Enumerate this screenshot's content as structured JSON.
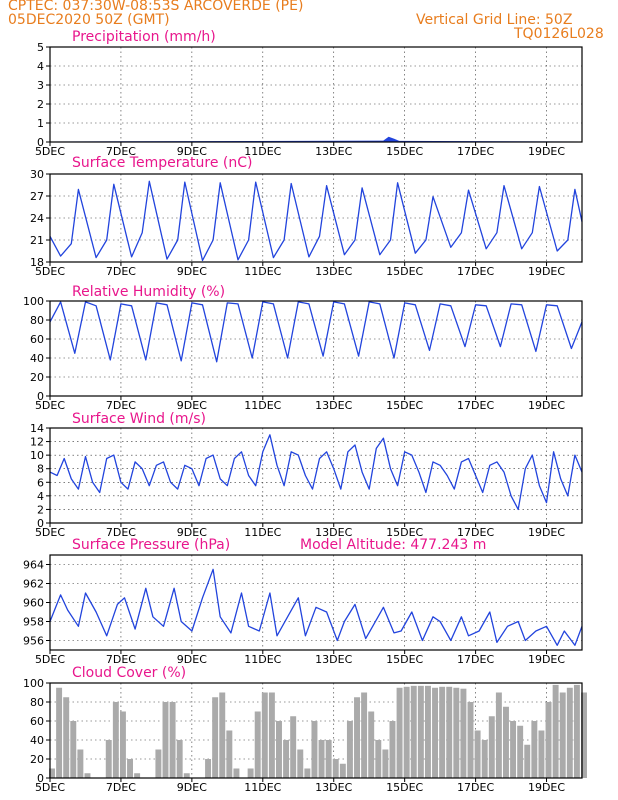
{
  "header": {
    "line1": "CPTEC:   037:30W-08:53S   ARCOVERDE (PE)",
    "line2": "05DEC2020 50Z (GMT)",
    "grid_note": "Vertical Grid Line: 50Z",
    "code": "TQ0126L028"
  },
  "colors": {
    "header": "#e87d1e",
    "title": "#e8168c",
    "series": "#2244dd",
    "cloud": "#aaaaaa",
    "axis": "#000000"
  },
  "x_axis": {
    "start_day": 5,
    "end_day": 20,
    "tick_labels": [
      "5DEC",
      "7DEC",
      "9DEC",
      "11DEC",
      "13DEC",
      "15DEC",
      "17DEC",
      "19DEC"
    ],
    "tick_days": [
      5,
      7,
      9,
      11,
      13,
      15,
      17,
      19
    ]
  },
  "chart_data": [
    {
      "id": "precip",
      "type": "area",
      "title": "Precipitation (mm/h)",
      "ylim": [
        0,
        5
      ],
      "yticks": [
        0,
        1,
        2,
        3,
        4,
        5
      ],
      "x": [
        5,
        14.4,
        14.55,
        14.7,
        14.85,
        20
      ],
      "y": [
        0,
        0.05,
        0.25,
        0.15,
        0.03,
        0
      ]
    },
    {
      "id": "temp",
      "type": "line",
      "title": "Surface Temperature (nC)",
      "ylim": [
        18,
        30
      ],
      "yticks": [
        18,
        21,
        24,
        27,
        30
      ],
      "x": [
        5.0,
        5.3,
        5.6,
        5.8,
        6.3,
        6.6,
        6.8,
        7.3,
        7.6,
        7.8,
        8.3,
        8.6,
        8.8,
        9.3,
        9.6,
        9.8,
        10.3,
        10.6,
        10.8,
        11.3,
        11.6,
        11.8,
        12.3,
        12.6,
        12.8,
        13.3,
        13.6,
        13.8,
        14.3,
        14.6,
        14.8,
        15.3,
        15.6,
        15.8,
        16.3,
        16.6,
        16.8,
        17.3,
        17.6,
        17.8,
        18.3,
        18.6,
        18.8,
        19.3,
        19.6,
        19.8,
        20.0
      ],
      "y": [
        21.5,
        18.8,
        20.5,
        27.9,
        18.6,
        21,
        28.6,
        18.7,
        22,
        29.0,
        18.4,
        21,
        28.9,
        18.2,
        21,
        28.8,
        18.3,
        21,
        28.9,
        18.6,
        21,
        28.7,
        18.7,
        21.5,
        28.4,
        19.0,
        21,
        28.1,
        19.0,
        21,
        28.8,
        19.2,
        21,
        26.9,
        20.0,
        22,
        27.8,
        19.8,
        22,
        28.4,
        19.8,
        22,
        28.3,
        19.5,
        21,
        27.9,
        23.5
      ]
    },
    {
      "id": "rh",
      "type": "line",
      "title": "Relative Humidity (%)",
      "ylim": [
        0,
        100
      ],
      "yticks": [
        0,
        20,
        40,
        60,
        80,
        100
      ],
      "x": [
        5.0,
        5.3,
        5.7,
        6.0,
        6.3,
        6.7,
        7.0,
        7.3,
        7.7,
        8.0,
        8.3,
        8.7,
        9.0,
        9.3,
        9.7,
        10.0,
        10.3,
        10.7,
        11.0,
        11.3,
        11.7,
        12.0,
        12.3,
        12.7,
        13.0,
        13.3,
        13.7,
        14.0,
        14.3,
        14.7,
        15.0,
        15.3,
        15.7,
        16.0,
        16.3,
        16.7,
        17.0,
        17.3,
        17.7,
        18.0,
        18.3,
        18.7,
        19.0,
        19.3,
        19.7,
        20.0
      ],
      "y": [
        78,
        99,
        45,
        99,
        95,
        38,
        97,
        95,
        38,
        98,
        96,
        37,
        98,
        96,
        36,
        98,
        97,
        40,
        99,
        97,
        40,
        99,
        97,
        42,
        99,
        97,
        42,
        99,
        97,
        40,
        98,
        96,
        48,
        97,
        95,
        52,
        96,
        95,
        52,
        97,
        96,
        47,
        96,
        95,
        50,
        78
      ]
    },
    {
      "id": "wind",
      "type": "line",
      "title": "Surface Wind (m/s)",
      "ylim": [
        0,
        14
      ],
      "yticks": [
        0,
        2,
        4,
        6,
        8,
        10,
        12,
        14
      ],
      "x": [
        5.0,
        5.2,
        5.4,
        5.6,
        5.8,
        6.0,
        6.2,
        6.4,
        6.6,
        6.8,
        7.0,
        7.2,
        7.4,
        7.6,
        7.8,
        8.0,
        8.2,
        8.4,
        8.6,
        8.8,
        9.0,
        9.2,
        9.4,
        9.6,
        9.8,
        10.0,
        10.2,
        10.4,
        10.6,
        10.8,
        11.0,
        11.2,
        11.4,
        11.6,
        11.8,
        12.0,
        12.2,
        12.4,
        12.6,
        12.8,
        13.0,
        13.2,
        13.4,
        13.6,
        13.8,
        14.0,
        14.2,
        14.4,
        14.6,
        14.8,
        15.0,
        15.2,
        15.4,
        15.6,
        15.8,
        16.0,
        16.2,
        16.4,
        16.6,
        16.8,
        17.0,
        17.2,
        17.4,
        17.6,
        17.8,
        18.0,
        18.2,
        18.4,
        18.6,
        18.8,
        19.0,
        19.2,
        19.4,
        19.6,
        19.8,
        20.0
      ],
      "y": [
        7.5,
        7.0,
        9.5,
        6.5,
        5.0,
        9.8,
        6.0,
        4.5,
        9.5,
        10.0,
        6.0,
        5.0,
        9.0,
        8.0,
        5.5,
        8.5,
        9.0,
        6.0,
        5.0,
        8.5,
        8.0,
        5.5,
        9.5,
        10.0,
        6.5,
        5.5,
        9.5,
        10.5,
        7.0,
        5.5,
        10.5,
        13.0,
        8.5,
        5.5,
        10.5,
        10.0,
        7.0,
        5.0,
        9.5,
        10.5,
        8.0,
        5.0,
        10.5,
        11.5,
        7.5,
        5.0,
        11.0,
        12.5,
        8.0,
        5.5,
        10.5,
        10.0,
        7.5,
        4.5,
        9.0,
        8.5,
        7.0,
        5.0,
        9.0,
        9.5,
        7.0,
        4.5,
        8.5,
        9.0,
        7.5,
        4.0,
        2.0,
        8.0,
        10.0,
        5.5,
        3.0,
        10.5,
        6.5,
        4.0,
        10.0,
        7.5
      ]
    },
    {
      "id": "pres",
      "type": "line",
      "title": "Surface Pressure (hPa)",
      "subtitle": "Model Altitude: 477.243 m",
      "ylim": [
        955,
        965
      ],
      "yticks": [
        956,
        958,
        960,
        962,
        964
      ],
      "x": [
        5.0,
        5.3,
        5.5,
        5.8,
        6.0,
        6.3,
        6.6,
        6.9,
        7.1,
        7.4,
        7.7,
        7.9,
        8.2,
        8.5,
        8.7,
        9.0,
        9.3,
        9.6,
        9.8,
        10.1,
        10.4,
        10.6,
        10.9,
        11.2,
        11.4,
        11.7,
        12.0,
        12.2,
        12.5,
        12.8,
        13.1,
        13.3,
        13.6,
        13.9,
        14.1,
        14.4,
        14.7,
        14.9,
        15.2,
        15.5,
        15.8,
        16.0,
        16.3,
        16.6,
        16.8,
        17.1,
        17.4,
        17.6,
        17.9,
        18.2,
        18.4,
        18.7,
        19.0,
        19.3,
        19.5,
        19.8,
        20.0
      ],
      "y": [
        958.0,
        960.8,
        959.2,
        957.5,
        961.0,
        959.0,
        956.5,
        959.8,
        960.5,
        957.2,
        961.5,
        958.5,
        957.5,
        961.5,
        958.0,
        957.0,
        960.5,
        963.5,
        958.5,
        956.8,
        961.0,
        957.5,
        957.0,
        961.0,
        956.5,
        958.5,
        960.5,
        956.5,
        959.5,
        959.0,
        956.0,
        958.0,
        959.8,
        956.2,
        957.5,
        959.5,
        956.8,
        957.0,
        959.0,
        956.0,
        958.5,
        958.0,
        956.0,
        958.5,
        956.5,
        957.0,
        959.0,
        955.8,
        957.5,
        958.0,
        956.0,
        957.0,
        957.5,
        955.5,
        957.0,
        955.5,
        957.5
      ]
    },
    {
      "id": "cloud",
      "type": "bar",
      "title": "Cloud Cover (%)",
      "ylim": [
        0,
        100
      ],
      "yticks": [
        0,
        20,
        40,
        60,
        80,
        100
      ],
      "x": [
        5.0,
        5.2,
        5.4,
        5.6,
        5.8,
        6.0,
        6.2,
        6.4,
        6.6,
        6.8,
        7.0,
        7.2,
        7.4,
        7.6,
        7.8,
        8.0,
        8.2,
        8.4,
        8.6,
        8.8,
        9.0,
        9.2,
        9.4,
        9.6,
        9.8,
        10.0,
        10.2,
        10.4,
        10.6,
        10.8,
        11.0,
        11.2,
        11.4,
        11.6,
        11.8,
        12.0,
        12.2,
        12.4,
        12.6,
        12.8,
        13.0,
        13.2,
        13.4,
        13.6,
        13.8,
        14.0,
        14.2,
        14.4,
        14.6,
        14.8,
        15.0,
        15.2,
        15.4,
        15.6,
        15.8,
        16.0,
        16.2,
        16.4,
        16.6,
        16.8,
        17.0,
        17.2,
        17.4,
        17.6,
        17.8,
        18.0,
        18.2,
        18.4,
        18.6,
        18.8,
        19.0,
        19.2,
        19.4,
        19.6,
        19.8,
        20.0
      ],
      "y": [
        10,
        95,
        85,
        60,
        30,
        5,
        0,
        0,
        40,
        80,
        70,
        20,
        5,
        0,
        0,
        30,
        80,
        80,
        40,
        5,
        0,
        0,
        20,
        85,
        90,
        50,
        10,
        0,
        10,
        70,
        90,
        90,
        60,
        40,
        65,
        30,
        10,
        60,
        40,
        40,
        20,
        15,
        60,
        85,
        90,
        70,
        40,
        30,
        60,
        95,
        96,
        97,
        97,
        97,
        95,
        96,
        96,
        95,
        94,
        80,
        50,
        40,
        65,
        90,
        75,
        60,
        55,
        35,
        60,
        50,
        80,
        98,
        90,
        95,
        98,
        90
      ]
    }
  ],
  "panels_text": {
    "p0": "Precipitation (mm/h)",
    "p1": "Surface Temperature (nC)",
    "p2": "Relative Humidity (%)",
    "p3": "Surface Wind (m/s)",
    "p4": "Surface Pressure (hPa)",
    "p4b": "Model Altitude: 477.243 m",
    "p5": "Cloud Cover (%)"
  }
}
